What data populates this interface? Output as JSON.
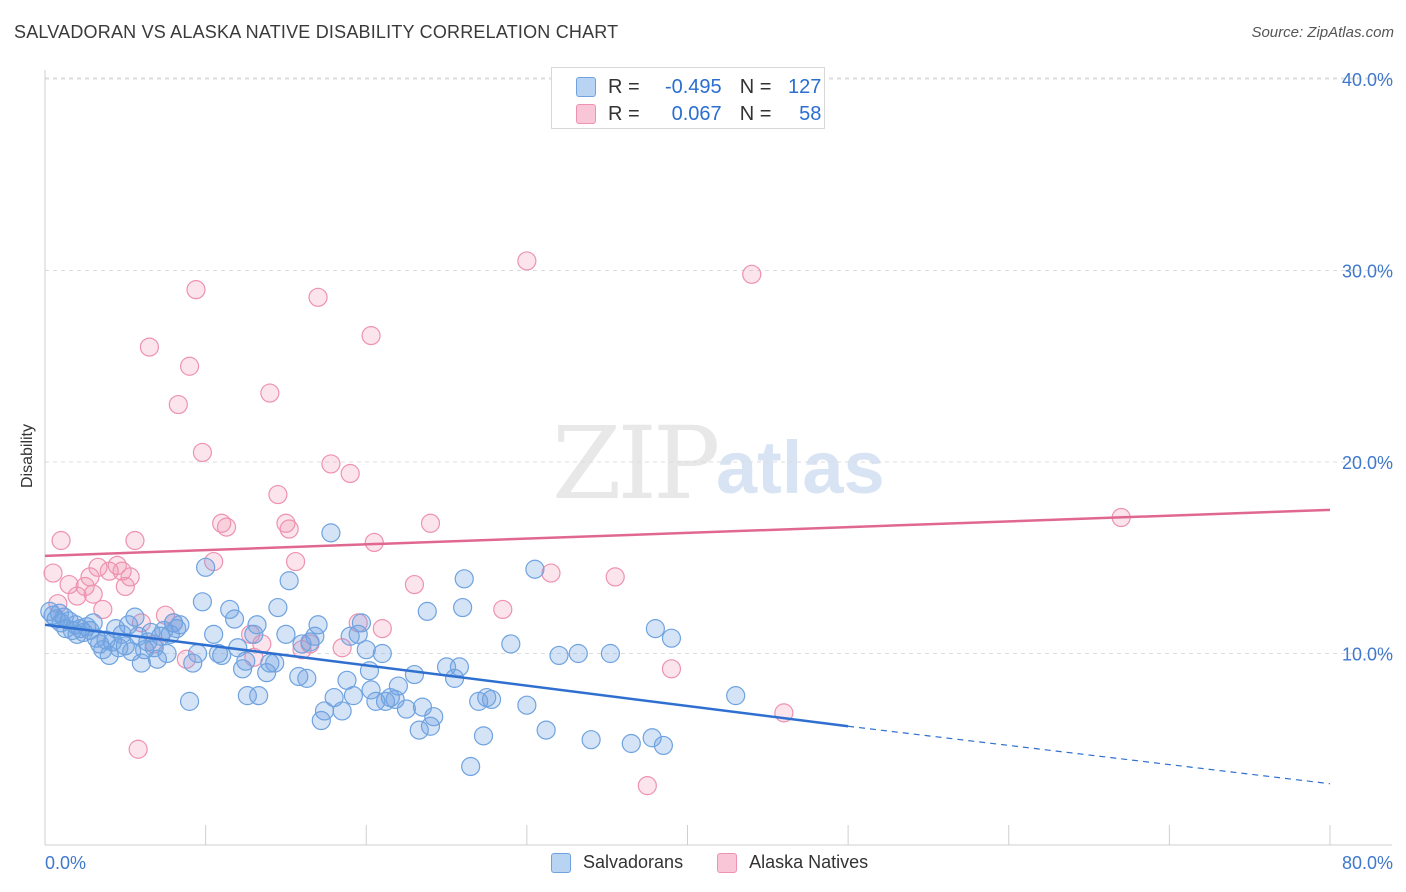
{
  "title": "SALVADORAN VS ALASKA NATIVE DISABILITY CORRELATION CHART",
  "source": "Source: ZipAtlas.com",
  "watermark": {
    "zip": "ZIP",
    "atlas": "atlas"
  },
  "legend": {
    "rows": [
      {
        "r_label": "R =",
        "r_value": "-0.495",
        "n_label": "N =",
        "n_value": "127"
      },
      {
        "r_label": "R =",
        "r_value": "0.067",
        "n_label": "N =",
        "n_value": "58"
      }
    ]
  },
  "bottom_legend": [
    "Salvadorans",
    "Alaska Natives"
  ],
  "chart_data": {
    "type": "scatter",
    "xlabel": "",
    "ylabel": "Disability",
    "xlim": [
      0,
      80
    ],
    "ylim": [
      0,
      42
    ],
    "x_tick_labels": [
      "0.0%",
      "80.0%"
    ],
    "y_ticks": [
      10,
      20,
      30,
      40
    ],
    "y_tick_labels": [
      "10.0%",
      "20.0%",
      "30.0%",
      "40.0%"
    ],
    "grid": true,
    "colors": {
      "blue": "#6fa3e0",
      "blue_line": "#2f6fd0",
      "pink": "#ee92b0",
      "pink_line": "#e06890",
      "tick_text": "#3f78cc"
    },
    "series": [
      {
        "name": "Salvadorans",
        "color": "#6fa3e0",
        "trend": {
          "x1": 0,
          "y1": 11.5,
          "x2": 50,
          "y2": 6.2,
          "dash_x2": 80,
          "dash_y2": 3.2
        },
        "points": [
          [
            0.3,
            12.2
          ],
          [
            0.5,
            12.0
          ],
          [
            0.7,
            11.8
          ],
          [
            0.9,
            12.1
          ],
          [
            1.0,
            11.6
          ],
          [
            1.2,
            11.9
          ],
          [
            1.3,
            11.3
          ],
          [
            1.5,
            11.7
          ],
          [
            1.7,
            11.2
          ],
          [
            1.9,
            11.5
          ],
          [
            2.0,
            11.0
          ],
          [
            2.2,
            11.3
          ],
          [
            2.4,
            11.1
          ],
          [
            2.6,
            11.4
          ],
          [
            2.8,
            11.2
          ],
          [
            3.0,
            11.6
          ],
          [
            3.2,
            10.8
          ],
          [
            3.4,
            10.5
          ],
          [
            3.6,
            10.2
          ],
          [
            3.8,
            10.7
          ],
          [
            4.0,
            9.9
          ],
          [
            4.2,
            10.6
          ],
          [
            4.4,
            11.3
          ],
          [
            4.6,
            10.3
          ],
          [
            4.8,
            11.0
          ],
          [
            5.0,
            10.4
          ],
          [
            5.2,
            11.5
          ],
          [
            5.4,
            10.1
          ],
          [
            5.6,
            11.9
          ],
          [
            5.8,
            10.9
          ],
          [
            6.0,
            9.5
          ],
          [
            6.2,
            10.2
          ],
          [
            6.4,
            10.6
          ],
          [
            6.6,
            11.1
          ],
          [
            6.8,
            10.3
          ],
          [
            7.0,
            9.7
          ],
          [
            7.2,
            10.9
          ],
          [
            7.4,
            11.2
          ],
          [
            7.6,
            10.0
          ],
          [
            7.8,
            11.0
          ],
          [
            8.0,
            11.6
          ],
          [
            8.2,
            11.3
          ],
          [
            8.4,
            11.5
          ],
          [
            9.0,
            7.5
          ],
          [
            9.2,
            9.5
          ],
          [
            9.5,
            10.0
          ],
          [
            9.8,
            12.7
          ],
          [
            10.0,
            14.5
          ],
          [
            10.5,
            11.0
          ],
          [
            10.8,
            10.0
          ],
          [
            11.0,
            9.9
          ],
          [
            11.5,
            12.3
          ],
          [
            11.8,
            11.8
          ],
          [
            12.0,
            10.3
          ],
          [
            12.3,
            9.2
          ],
          [
            12.5,
            9.6
          ],
          [
            12.6,
            7.8
          ],
          [
            13.0,
            11.0
          ],
          [
            13.2,
            11.5
          ],
          [
            13.3,
            7.8
          ],
          [
            13.8,
            9.0
          ],
          [
            14.0,
            9.5
          ],
          [
            14.3,
            9.5
          ],
          [
            14.5,
            12.4
          ],
          [
            15.0,
            11.0
          ],
          [
            15.2,
            13.8
          ],
          [
            15.8,
            8.8
          ],
          [
            16.0,
            10.5
          ],
          [
            16.3,
            8.7
          ],
          [
            16.5,
            10.6
          ],
          [
            16.8,
            10.9
          ],
          [
            17.0,
            11.5
          ],
          [
            17.2,
            6.5
          ],
          [
            17.4,
            7.0
          ],
          [
            17.8,
            16.3
          ],
          [
            18.0,
            7.7
          ],
          [
            18.5,
            7.0
          ],
          [
            18.8,
            8.6
          ],
          [
            19.0,
            10.9
          ],
          [
            19.2,
            7.8
          ],
          [
            19.5,
            11.0
          ],
          [
            19.7,
            11.6
          ],
          [
            20.0,
            10.2
          ],
          [
            20.2,
            9.1
          ],
          [
            20.3,
            8.1
          ],
          [
            20.6,
            7.5
          ],
          [
            21.0,
            10.0
          ],
          [
            21.2,
            7.5
          ],
          [
            21.5,
            7.7
          ],
          [
            21.8,
            7.6
          ],
          [
            22.0,
            8.3
          ],
          [
            22.5,
            7.1
          ],
          [
            23.0,
            8.9
          ],
          [
            23.3,
            6.0
          ],
          [
            23.5,
            7.2
          ],
          [
            23.8,
            12.2
          ],
          [
            24.0,
            6.2
          ],
          [
            24.2,
            6.7
          ],
          [
            25.0,
            9.3
          ],
          [
            25.5,
            8.7
          ],
          [
            25.8,
            9.3
          ],
          [
            26.0,
            12.4
          ],
          [
            26.1,
            13.9
          ],
          [
            26.5,
            4.1
          ],
          [
            27.0,
            7.5
          ],
          [
            27.3,
            5.7
          ],
          [
            27.5,
            7.7
          ],
          [
            27.8,
            7.6
          ],
          [
            29.0,
            10.5
          ],
          [
            30.0,
            7.3
          ],
          [
            30.5,
            14.4
          ],
          [
            31.2,
            6.0
          ],
          [
            32.0,
            9.9
          ],
          [
            33.2,
            10.0
          ],
          [
            34.0,
            5.5
          ],
          [
            35.2,
            10.0
          ],
          [
            36.5,
            5.3
          ],
          [
            37.8,
            5.6
          ],
          [
            38.0,
            11.3
          ],
          [
            38.5,
            5.2
          ],
          [
            39.0,
            10.8
          ],
          [
            43.0,
            7.8
          ]
        ]
      },
      {
        "name": "Alaska Natives",
        "color": "#ee92b0",
        "trend": {
          "x1": 0,
          "y1": 15.1,
          "x2": 80,
          "y2": 17.5
        },
        "points": [
          [
            0.5,
            14.2
          ],
          [
            0.8,
            12.6
          ],
          [
            1.0,
            15.9
          ],
          [
            1.5,
            13.6
          ],
          [
            2.0,
            13.0
          ],
          [
            2.5,
            13.5
          ],
          [
            2.8,
            14.0
          ],
          [
            3.0,
            13.1
          ],
          [
            3.3,
            14.5
          ],
          [
            3.6,
            12.3
          ],
          [
            4.0,
            14.3
          ],
          [
            4.5,
            14.6
          ],
          [
            4.8,
            14.3
          ],
          [
            5.0,
            13.5
          ],
          [
            5.3,
            14.0
          ],
          [
            5.6,
            15.9
          ],
          [
            5.8,
            5.0
          ],
          [
            6.0,
            11.6
          ],
          [
            6.5,
            26.0
          ],
          [
            6.8,
            10.5
          ],
          [
            7.5,
            12.0
          ],
          [
            8.0,
            11.6
          ],
          [
            8.3,
            23.0
          ],
          [
            8.8,
            9.7
          ],
          [
            9.0,
            25.0
          ],
          [
            9.4,
            29.0
          ],
          [
            9.8,
            20.5
          ],
          [
            10.5,
            14.8
          ],
          [
            11.0,
            16.8
          ],
          [
            11.3,
            16.6
          ],
          [
            12.8,
            11.0
          ],
          [
            13.0,
            9.8
          ],
          [
            13.5,
            10.5
          ],
          [
            14.0,
            23.6
          ],
          [
            14.5,
            18.3
          ],
          [
            15.0,
            16.8
          ],
          [
            15.2,
            16.5
          ],
          [
            15.6,
            14.8
          ],
          [
            16.0,
            10.2
          ],
          [
            16.5,
            10.5
          ],
          [
            17.0,
            28.6
          ],
          [
            17.8,
            19.9
          ],
          [
            18.5,
            10.3
          ],
          [
            19.0,
            19.4
          ],
          [
            19.5,
            11.6
          ],
          [
            20.3,
            26.6
          ],
          [
            20.5,
            15.8
          ],
          [
            21.0,
            11.3
          ],
          [
            23.0,
            13.6
          ],
          [
            24.0,
            16.8
          ],
          [
            28.5,
            12.3
          ],
          [
            30.0,
            30.5
          ],
          [
            31.5,
            14.2
          ],
          [
            35.5,
            14.0
          ],
          [
            37.5,
            3.1
          ],
          [
            39.0,
            9.2
          ],
          [
            44.0,
            29.8
          ],
          [
            46.0,
            6.9
          ],
          [
            67.0,
            17.1
          ]
        ]
      }
    ]
  }
}
